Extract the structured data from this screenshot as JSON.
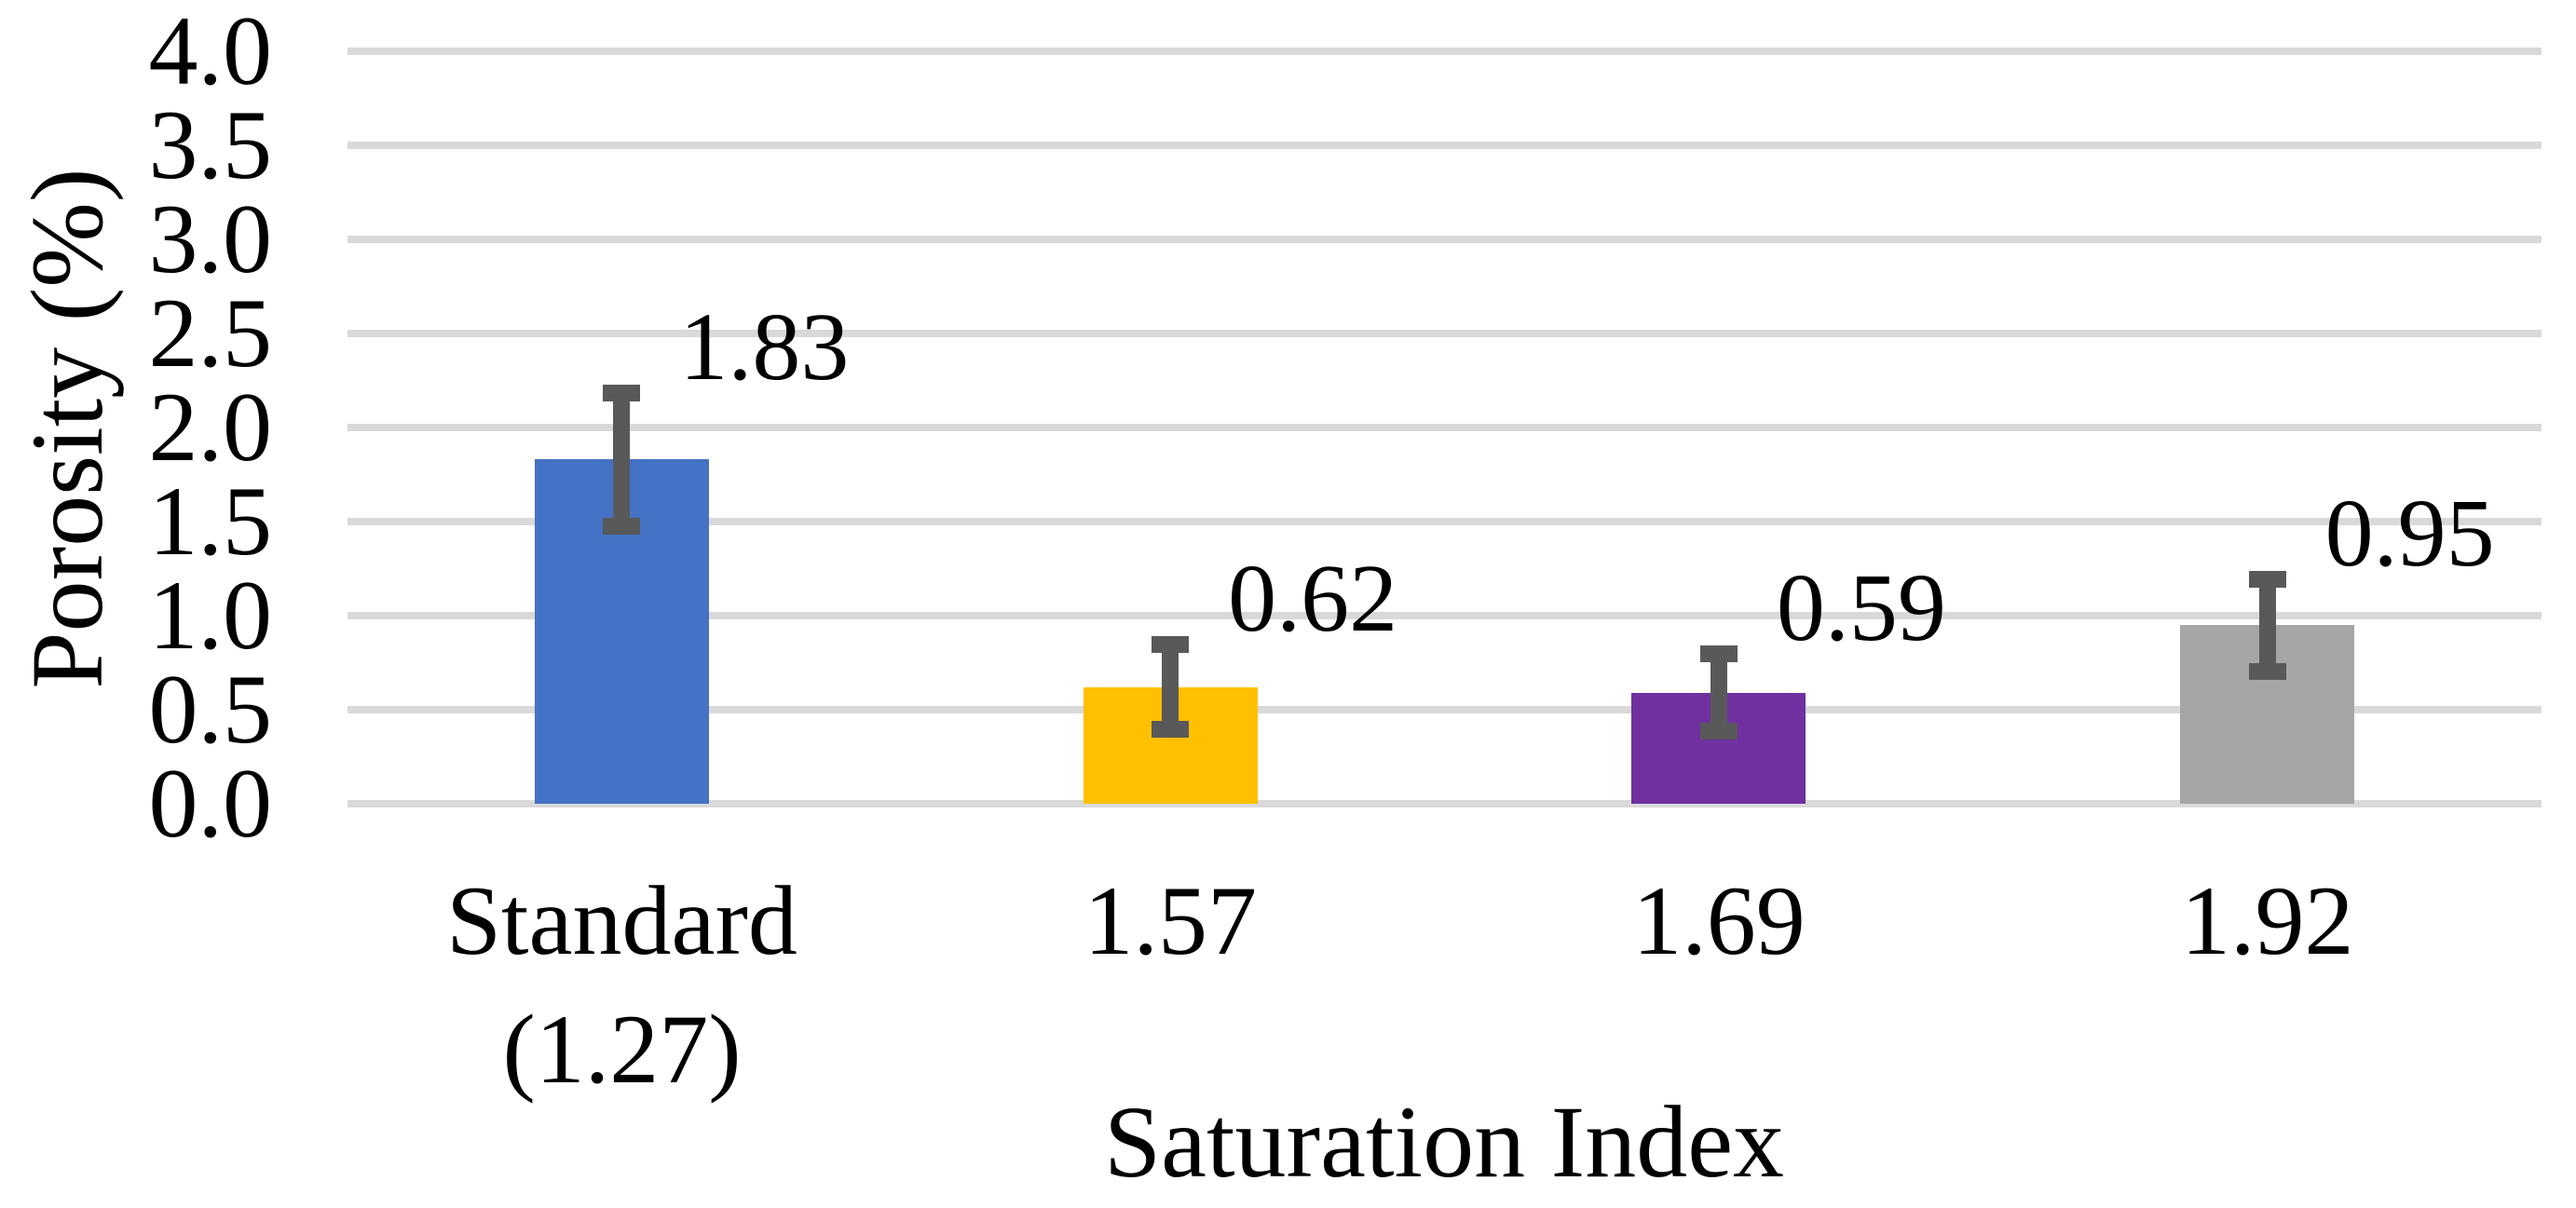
{
  "chart_data": {
    "type": "bar",
    "title": "",
    "xlabel": "Saturation Index",
    "ylabel": "Porosity (%)",
    "categories": [
      "Standard\n(1.27)",
      "1.57",
      "1.69",
      "1.92"
    ],
    "values": [
      1.83,
      0.62,
      0.59,
      0.95
    ],
    "data_labels": [
      "1.83",
      "0.62",
      "0.59",
      "0.95"
    ],
    "error_bars": [
      0.4,
      0.27,
      0.25,
      0.29
    ],
    "bar_colors": [
      "#4472C4",
      "#FFC000",
      "#7030A0",
      "#A6A6A6"
    ],
    "error_bar_color": "#595959",
    "gridline_color": "#D9D9D9",
    "text_color": "#000000",
    "background_color": "#FFFFFF",
    "yticks": [
      "0.0",
      "0.5",
      "1.0",
      "1.5",
      "2.0",
      "2.5",
      "3.0",
      "3.5",
      "4.0"
    ],
    "ylim": [
      0.0,
      4.0
    ],
    "ytick_step": 0.5,
    "grid": true,
    "legend": false
  }
}
